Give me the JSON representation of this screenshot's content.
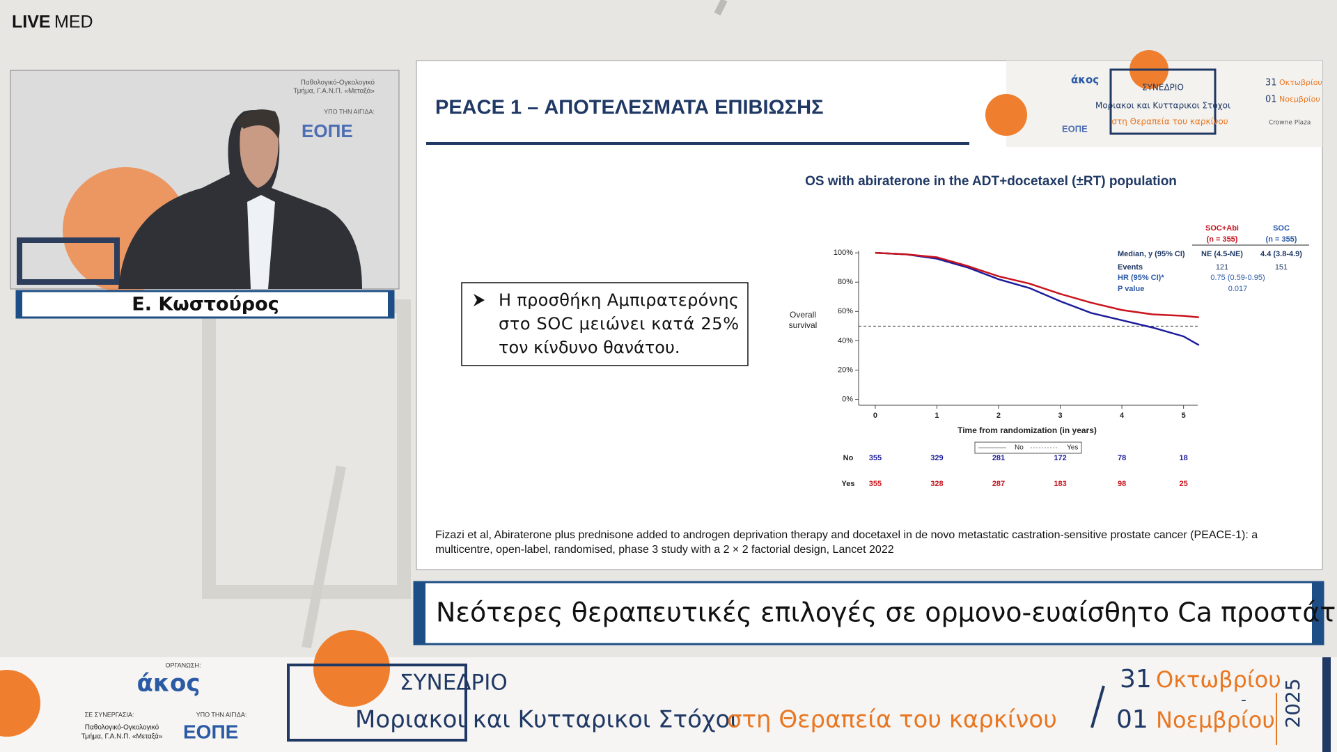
{
  "brand": {
    "live": "LIVE",
    "med": "MED"
  },
  "speaker": {
    "name": "Ε. Κωστούρος"
  },
  "slide": {
    "title": "PEACE 1 – ΑΠΟΤΕΛΕΣΜΑΤΑ ΕΠΙΒΙΩΣΗΣ",
    "bullet": [
      "Η προσθήκη Αμπιρατερόνης",
      "στο SOC μειώνει κατά 25%",
      "τον κίνδυνο θανάτου."
    ],
    "chart": {
      "type": "line",
      "title": "OS with abiraterone in the ADT+docetaxel (±RT) population",
      "y_label": [
        "Overall",
        "survival"
      ],
      "x_label": "Time from randomization (in years)",
      "x": [
        0,
        0.5,
        1,
        1.5,
        2,
        2.5,
        3,
        3.5,
        4,
        4.5,
        5,
        5.25
      ],
      "series": [
        {
          "name": "No",
          "color": "#1c1c9c",
          "values": [
            100,
            99,
            96,
            90,
            82,
            76,
            67,
            59,
            54,
            49,
            43,
            37
          ]
        },
        {
          "name": "Yes",
          "color": "#c8141e",
          "values": [
            100,
            99,
            97,
            91,
            84,
            79,
            72,
            66,
            61,
            58,
            57,
            56
          ]
        }
      ],
      "reference_line": 50,
      "xlim": [
        -0.27,
        5.23
      ],
      "ylim": [
        -4,
        101.5
      ],
      "xticks": [
        0,
        1,
        2,
        3,
        4,
        5
      ],
      "yticks": [
        {
          "value": 0,
          "label": "0%"
        },
        {
          "value": 20,
          "label": "20%"
        },
        {
          "value": 40,
          "label": "40%"
        },
        {
          "value": 60,
          "label": "60%"
        },
        {
          "value": 80,
          "label": "80%"
        },
        {
          "value": 100,
          "label": "100%"
        }
      ],
      "at_risk": [
        {
          "label": "No",
          "values": [
            355,
            329,
            281,
            172,
            78,
            18
          ]
        },
        {
          "label": "Yes",
          "values": [
            355,
            328,
            287,
            183,
            98,
            25
          ]
        }
      ],
      "stats": {
        "headers": [
          [
            "SOC+Abi",
            "(n = 355)"
          ],
          [
            "SOC",
            "(n = 355)"
          ]
        ],
        "rows": [
          {
            "label": "Median, y (95% CI)",
            "values": [
              "NE (4.5-NE)",
              "4.4 (3.8-4.9)"
            ]
          },
          {
            "label": "Events",
            "values": [
              "121",
              "151"
            ]
          },
          {
            "label": "HR (95% CI)*",
            "values": [
              "0.75 (0.59-0.95)"
            ]
          },
          {
            "label": "P value",
            "values": [
              "0.017"
            ]
          }
        ]
      }
    },
    "citation": [
      "Fizazi et al, Abiraterone plus prednisone added to androgen deprivation therapy and docetaxel in de novo metastatic castration-sensitive prostate cancer (PEACE-1): a",
      "multicentre, open-label, randomised, phase 3 study with a 2 × 2 factorial design, Lancet 2022"
    ]
  },
  "subtitle": "Νεότερες θεραπευτικές επιλογές σε ορμονο-ευαίσθητο Ca προστάτη.",
  "banner": {
    "organizer_label": "ΟΡΓΑΝΩΣΗ:",
    "organizer": "άκος",
    "partner_label": "ΣΕ ΣΥΝΕΡΓΑΣΙΑ:",
    "partner": [
      "Παθολογικό-Ογκολογικό",
      "Τμήμα, Γ.Α.Ν.Π. «Μεταξά»"
    ],
    "auspices_label": "ΥΠΟ ΤΗΝ ΑΙΓΙΔΑ:",
    "auspices": "ΕΟΠΕ",
    "event": "ΣΥΝΕΔΡΙΟ",
    "theme_main": "Μοριακοι και Κυτταρικοι Στόχοι",
    "theme_accent": "στη Θεραπεία του καρκίνου",
    "day1": "31",
    "month1": "Οκτωβρίου",
    "dash": "-",
    "day2": "01",
    "month2": "Νοεμβρίου",
    "year": "2025",
    "venue": "Crowne Plaza"
  }
}
